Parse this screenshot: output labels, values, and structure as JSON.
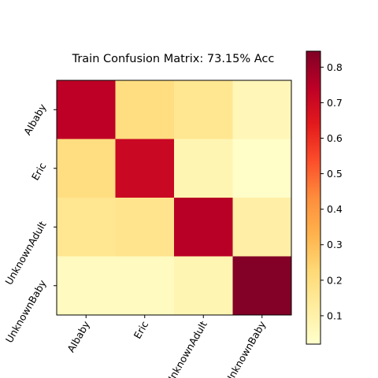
{
  "chart_data": {
    "type": "heatmap",
    "title": "Train Confusion Matrix: 73.15% Acc",
    "xlabel": "",
    "ylabel": "",
    "x_categories": [
      "AIbaby",
      "Eric",
      "UnknownAdult",
      "UnknownBaby"
    ],
    "y_categories": [
      "AIbaby",
      "Eric",
      "UnknownAdult",
      "UnknownBaby"
    ],
    "matrix": [
      [
        0.74,
        0.2,
        0.16,
        0.07
      ],
      [
        0.2,
        0.71,
        0.08,
        0.03
      ],
      [
        0.16,
        0.17,
        0.75,
        0.11
      ],
      [
        0.05,
        0.05,
        0.08,
        0.84
      ]
    ],
    "colormap": "YlOrRd",
    "colorbar": {
      "range": [
        0.02,
        0.845
      ],
      "ticks": [
        "0.1",
        "0.2",
        "0.3",
        "0.4",
        "0.5",
        "0.6",
        "0.7",
        "0.8"
      ],
      "tick_values": [
        0.1,
        0.2,
        0.3,
        0.4,
        0.5,
        0.6,
        0.7,
        0.8
      ]
    },
    "grid": false
  }
}
